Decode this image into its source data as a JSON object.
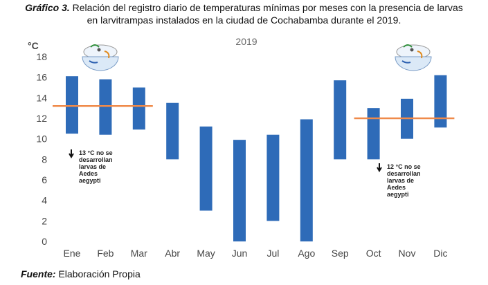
{
  "caption": {
    "lead": "Gráfico 3.",
    "line1_rest": " Relación del registro diario de temperaturas mínimas por meses con la presencia de larvas",
    "line2": "en larvitrampas instalados en la ciudad de Cochabamba durante el 2019."
  },
  "source": {
    "lead": "Fuente:",
    "text": " Elaboración Propia"
  },
  "chart_data": {
    "type": "bar",
    "subtype": "floating-range",
    "title": "2019",
    "ylabel": "°C",
    "xlabel": "",
    "ylim": [
      0,
      18
    ],
    "yticks": [
      0,
      2,
      4,
      6,
      8,
      10,
      12,
      14,
      16,
      18
    ],
    "categories": [
      "Ene",
      "Feb",
      "Mar",
      "Abr",
      "May",
      "Jun",
      "Jul",
      "Ago",
      "Sep",
      "Oct",
      "Nov",
      "Dic"
    ],
    "ranges": [
      [
        10.5,
        16.1
      ],
      [
        10.4,
        15.8
      ],
      [
        10.9,
        15.0
      ],
      [
        8.0,
        13.5
      ],
      [
        3.0,
        11.2
      ],
      [
        0.0,
        9.9
      ],
      [
        2.0,
        10.4
      ],
      [
        0.0,
        11.9
      ],
      [
        8.0,
        15.7
      ],
      [
        8.0,
        13.0
      ],
      [
        10.0,
        13.9
      ],
      [
        11.1,
        16.2
      ]
    ],
    "bar_color": "#2e6bb8",
    "threshold_color": "#ef8a4a",
    "thresholds": [
      {
        "value": 13.2,
        "from": "Ene",
        "to": "Mar",
        "label_lines": [
          "13 °C no se",
          "desarrollan",
          "larvas de",
          "Aedes",
          "aegypti"
        ]
      },
      {
        "value": 12.0,
        "from": "Oct",
        "to": "Dic",
        "label_lines": [
          "12 °C no se",
          "desarrollan",
          "larvas de",
          "Aedes",
          "aegypti"
        ]
      }
    ],
    "grid": false
  }
}
